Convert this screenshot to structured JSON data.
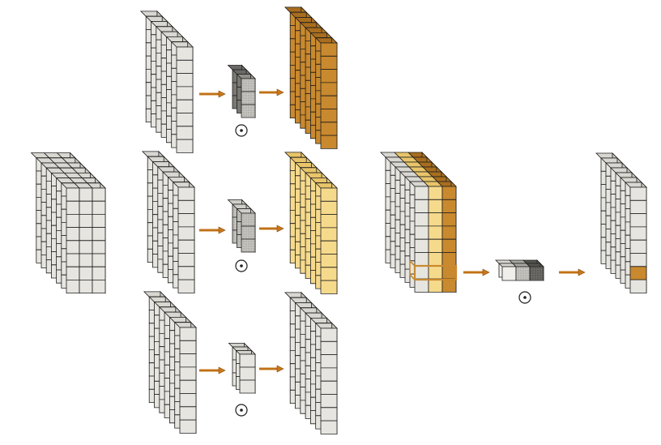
{
  "operator_symbol": "⊙",
  "colors": {
    "cube_face": "#e6e5e0",
    "cube_top": "#d8d7d1",
    "cube_side": "#c9c8c2",
    "grid_line": "#1e1e1e",
    "arrow": "#c9781a",
    "arrow_outline": "#8a4a10",
    "dark_orange": "#c9892e",
    "dark_orange_top": "#a86d1e",
    "dark_orange_side": "#b27824",
    "light_yellow": "#f6da8c",
    "light_yellow_top": "#e8c56a",
    "light_yellow_side": "#eccb76",
    "kernel_face": "#bdbcb6",
    "kernel_dark": "#6a6a66"
  },
  "diagram": {
    "input_block": {
      "label": "input-feature-map"
    },
    "branches": [
      {
        "id": "branch-1",
        "output_color": "dark_orange"
      },
      {
        "id": "branch-2",
        "output_color": "light_yellow"
      },
      {
        "id": "branch-3",
        "output_color": "plain"
      }
    ],
    "merged_block": {
      "label": "concatenated-feature-map"
    },
    "final_output": {
      "label": "fused-output-map"
    }
  }
}
